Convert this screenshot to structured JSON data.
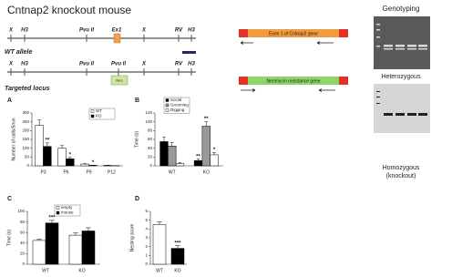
{
  "title": "Cntnap2 knockout mouse",
  "diagram": {
    "wt": {
      "sites": [
        "X",
        "H3",
        "Pvu II",
        "Ex1",
        "X",
        "RV",
        "H3"
      ],
      "label": "WT allele"
    },
    "targeted": {
      "sites": [
        "X",
        "H3",
        "Pvu II",
        "Pvu II",
        "Neo",
        "X",
        "RV",
        "H3"
      ],
      "label": "Targeted locus"
    },
    "constructs": [
      "Exon 1 of Cntnap2 gene",
      "Neomycin resistance gene"
    ]
  },
  "genotyping": {
    "title": "Genotyping",
    "labels": [
      "Heterozygous",
      "Homozygous",
      "(knockout)"
    ]
  },
  "chart_data": [
    {
      "type": "bar",
      "panel": "A",
      "ylabel": "Number of calls/5min",
      "categories": [
        "P3",
        "P6",
        "P9",
        "P12"
      ],
      "series": [
        {
          "name": "WT",
          "color": "#ffffff",
          "values": [
            230,
            100,
            10,
            3
          ],
          "errors": [
            30,
            15,
            3,
            1
          ]
        },
        {
          "name": "KO",
          "color": "#000000",
          "values": [
            110,
            40,
            3,
            1
          ],
          "errors": [
            20,
            8,
            1,
            0.5
          ]
        }
      ],
      "ylim": [
        0,
        300
      ],
      "yticks": [
        0,
        50,
        100,
        150,
        200,
        250,
        300
      ],
      "annotations": [
        {
          "text": "**",
          "category": 0,
          "series": 1
        },
        {
          "text": "*",
          "category": 1,
          "series": 1
        },
        {
          "text": "*",
          "category": 2,
          "series": 1
        }
      ]
    },
    {
      "type": "bar",
      "panel": "B",
      "ylabel": "Time (s)",
      "categories": [
        "WT",
        "KO"
      ],
      "series": [
        {
          "name": "Social",
          "color": "#000000",
          "values": [
            55,
            12
          ],
          "errors": [
            10,
            3
          ]
        },
        {
          "name": "Grooming",
          "color": "#999999",
          "values": [
            45,
            90
          ],
          "errors": [
            8,
            10
          ]
        },
        {
          "name": "Digging",
          "color": "#ffffff",
          "values": [
            5,
            25
          ],
          "errors": [
            2,
            5
          ]
        }
      ],
      "ylim": [
        0,
        120
      ],
      "yticks": [
        0,
        20,
        40,
        60,
        80,
        100,
        120
      ],
      "annotations": [
        {
          "text": "**",
          "category": 1,
          "series": 0
        },
        {
          "text": "**",
          "category": 1,
          "series": 1
        },
        {
          "text": "*",
          "category": 1,
          "series": 2
        }
      ]
    },
    {
      "type": "bar",
      "panel": "C",
      "ylabel": "Time (s)",
      "categories": [
        "WT",
        "KO"
      ],
      "series": [
        {
          "name": "empty",
          "color": "#ffffff",
          "values": [
            45,
            55
          ],
          "errors": [
            2,
            4
          ]
        },
        {
          "name": "mouse",
          "color": "#000000",
          "values": [
            78,
            63
          ],
          "errors": [
            5,
            6
          ]
        }
      ],
      "ylim": [
        0,
        100
      ],
      "yticks": [
        0,
        20,
        40,
        60,
        80,
        100
      ],
      "annotations": [
        {
          "text": "***",
          "category": 0,
          "series": 1
        }
      ]
    },
    {
      "type": "bar",
      "panel": "D",
      "ylabel": "Nesting score",
      "categories": [
        "WT",
        "KO"
      ],
      "values": [
        4.5,
        1.8
      ],
      "errors": [
        0.3,
        0.3
      ],
      "colors": [
        "#ffffff",
        "#000000"
      ],
      "ylim": [
        0,
        6
      ],
      "yticks": [
        0,
        1,
        2,
        3,
        4,
        5,
        6
      ],
      "annotations": [
        {
          "text": "***",
          "category": 1
        }
      ]
    }
  ]
}
